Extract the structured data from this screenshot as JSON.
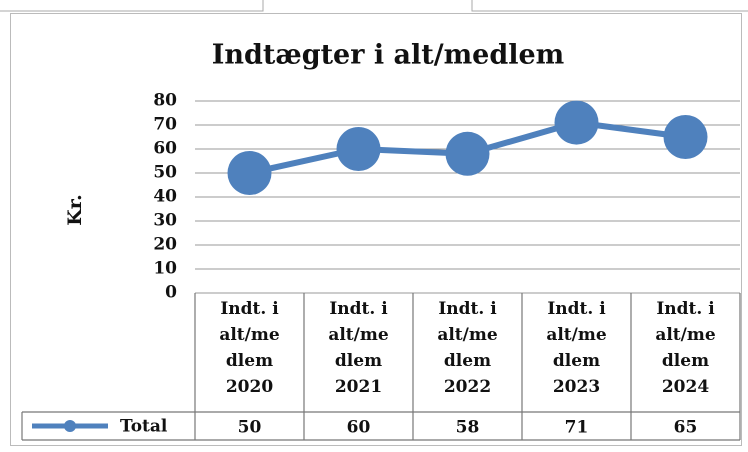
{
  "chart_data": {
    "type": "line",
    "title": "Indtægter i alt/medlem",
    "y_label": "Kr.",
    "categories": [
      "Indt. i alt/medlem 2020",
      "Indt. i alt/medlem 2021",
      "Indt. i alt/medlem 2022",
      "Indt. i alt/medlem 2023",
      "Indt. i alt/medlem 2024"
    ],
    "series": [
      {
        "name": "Total",
        "color": "#4f81bd",
        "values": [
          50,
          60,
          58,
          71,
          65
        ]
      }
    ],
    "ylim": [
      0,
      80
    ],
    "yticks": [
      0,
      10,
      20,
      30,
      40,
      50,
      60,
      70,
      80
    ],
    "grid": true
  }
}
